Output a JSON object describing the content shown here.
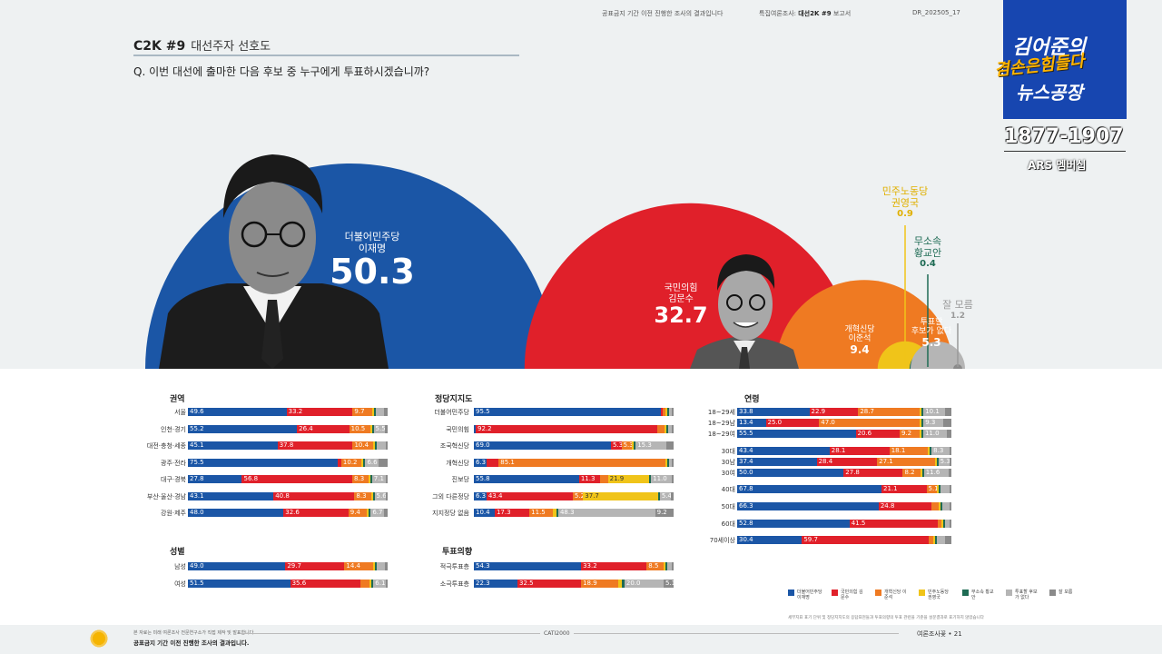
{
  "header": {
    "notice": "공표금지 기간 이전 진행한 조사의 결과입니다",
    "report_prefix": "특집여론조사:",
    "report_name": "대선2K #9",
    "report_suffix": "보고서",
    "doc_code": "DR_202505_17",
    "code": "C2K #9",
    "subtitle": "대선주자 선호도",
    "question_mark": "Q.",
    "question": "이번 대선에 출마한 다음 후보 중 누구에게 투표하시겠습니까?"
  },
  "logo": {
    "line1": "김어준의",
    "line2": "겸손은힘들다",
    "line3": "뉴스공장",
    "phone": "1877-1907",
    "ars": "ARS 멤버십"
  },
  "colors": {
    "dem": "#1b56a6",
    "ppp": "#e0202a",
    "reform": "#ef7a22",
    "labor": "#f0c419",
    "indep": "#1e6b54",
    "none": "#b5b5b5",
    "dk": "#8a8a8a"
  },
  "chart_data": [
    {
      "type": "bubble",
      "candidates": [
        {
          "party": "더불어민주당",
          "name": "이재명",
          "value": 50.3,
          "color": "#1b56a6"
        },
        {
          "party": "국민의힘",
          "name": "김문수",
          "value": 32.7,
          "color": "#e0202a"
        },
        {
          "party": "개혁신당",
          "name": "이준석",
          "value": 9.4,
          "color": "#ef7a22"
        },
        {
          "party": "민주노동당",
          "name": "권영국",
          "value": 0.9,
          "color": "#f0c419"
        },
        {
          "party": "무소속",
          "name": "황교안",
          "value": 0.4,
          "color": "#1e6b54"
        },
        {
          "party": "투표할",
          "name": "후보가 없다",
          "value": 5.3,
          "color": "#b5b5b5"
        },
        {
          "party": "잘 모름",
          "name": "",
          "value": 1.2,
          "color": "#8a8a8a"
        }
      ]
    },
    {
      "type": "bar",
      "title": "권역",
      "rows": [
        {
          "label": "서울",
          "values": [
            49.6,
            33.2,
            9.7,
            0.8,
            0.6,
            4.3,
            1.8
          ]
        },
        {
          "label": "인천·경기",
          "values": [
            55.2,
            26.4,
            10.5,
            0.5,
            0.3,
            5.5,
            1.6
          ]
        },
        {
          "label": "대전·충청·세종",
          "values": [
            45.1,
            37.8,
            10.4,
            1.0,
            0.4,
            4.3,
            1.0
          ]
        },
        {
          "label": "광주·전라",
          "values": [
            75.5,
            1.6,
            10.2,
            1.0,
            0.5,
            6.6,
            4.6
          ]
        },
        {
          "label": "대구·경북",
          "values": [
            27.8,
            56.8,
            8.3,
            0.6,
            0.5,
            7.1,
            0.4
          ]
        },
        {
          "label": "부산·울산·경남",
          "values": [
            43.1,
            40.8,
            8.3,
            0.8,
            0.4,
            5.6,
            1.0
          ]
        },
        {
          "label": "강원·제주",
          "values": [
            48.0,
            32.6,
            9.4,
            0.9,
            0.6,
            6.7,
            1.8
          ]
        }
      ],
      "shown": [
        [
          "49.6",
          "33.2",
          "9.7",
          "",
          "",
          "",
          ""
        ],
        [
          "55.2",
          "26.4",
          "10.5",
          "",
          "",
          "5.5",
          ""
        ],
        [
          "45.1",
          "37.8",
          "10.4",
          "",
          "",
          "",
          ""
        ],
        [
          "75.5",
          "",
          "10.2",
          "",
          "",
          "6.6",
          ""
        ],
        [
          "27.8",
          "56.8",
          "8.3",
          "",
          "",
          "7.1",
          ""
        ],
        [
          "43.1",
          "40.8",
          "8.3",
          "",
          "",
          "5.6",
          ""
        ],
        [
          "48.0",
          "32.6",
          "9.4",
          "",
          "",
          "6.7",
          ""
        ]
      ]
    },
    {
      "type": "bar",
      "title": "성별",
      "rows": [
        {
          "label": "남성",
          "values": [
            49.0,
            29.7,
            14.4,
            0.9,
            0.5,
            4.3,
            1.2
          ]
        },
        {
          "label": "여성",
          "values": [
            51.5,
            35.6,
            4.5,
            0.9,
            0.3,
            6.1,
            1.1
          ]
        }
      ],
      "shown": [
        [
          "49.0",
          "29.7",
          "14.4",
          "",
          "",
          "",
          ""
        ],
        [
          "51.5",
          "35.6",
          "",
          "",
          "",
          "6.1",
          ""
        ]
      ]
    },
    {
      "type": "bar",
      "title": "정당지지도",
      "rows": [
        {
          "label": "더불어민주당",
          "values": [
            95.5,
            0.8,
            1.2,
            0.3,
            0.2,
            1.5,
            0.5
          ]
        },
        {
          "label": "국민의힘",
          "values": [
            0.8,
            92.2,
            3.5,
            0.2,
            0.4,
            2.0,
            0.9
          ]
        },
        {
          "label": "조국혁신당",
          "values": [
            69.0,
            5.3,
            5.3,
            0.8,
            0.5,
            15.3,
            3.8
          ]
        },
        {
          "label": "개혁신당",
          "values": [
            6.3,
            6.3,
            85.1,
            0.3,
            0.2,
            1.3,
            0.5
          ]
        },
        {
          "label": "진보당",
          "values": [
            55.8,
            11.3,
            4.0,
            21.9,
            0.0,
            11.0,
            0.0
          ]
        },
        {
          "label": "그외 다른정당",
          "values": [
            6.3,
            43.4,
            5.2,
            37.7,
            0.5,
            5.4,
            1.5
          ]
        },
        {
          "label": "지지정당 없음",
          "values": [
            10.4,
            17.3,
            11.5,
            1.8,
            1.1,
            48.3,
            9.2
          ]
        }
      ],
      "shown": [
        [
          "95.5",
          "",
          "",
          "",
          "",
          "",
          ""
        ],
        [
          "",
          "92.2",
          "",
          "",
          "",
          "",
          ""
        ],
        [
          "69.0",
          "5.3",
          "5.3",
          "",
          "",
          "15.3",
          ""
        ],
        [
          "6.3",
          "",
          "85.1",
          "",
          "",
          "",
          ""
        ],
        [
          "55.8",
          "11.3",
          "",
          "21.9",
          "",
          "11.0",
          ""
        ],
        [
          "6.3",
          "43.4",
          "5.2",
          "37.7",
          "",
          "5.4",
          ""
        ],
        [
          "10.4",
          "17.3",
          "11.5",
          "",
          "",
          "48.3",
          "9.2"
        ]
      ]
    },
    {
      "type": "bar",
      "title": "투표의향",
      "rows": [
        {
          "label": "적극투표층",
          "values": [
            54.3,
            33.2,
            8.5,
            0.7,
            0.4,
            2.4,
            0.5
          ]
        },
        {
          "label": "소극투표층",
          "values": [
            22.3,
            32.5,
            18.9,
            2.0,
            1.3,
            20.0,
            5.1
          ]
        }
      ],
      "shown": [
        [
          "54.3",
          "33.2",
          "8.5",
          "",
          "",
          "",
          ""
        ],
        [
          "22.3",
          "32.5",
          "18.9",
          "",
          "",
          "20.0",
          "5.1"
        ]
      ]
    },
    {
      "type": "bar",
      "title": "연령",
      "rows": [
        {
          "label": "18~29세",
          "values": [
            33.8,
            22.9,
            28.7,
            1.0,
            0.5,
            10.1,
            3.0
          ]
        },
        {
          "label": "18~29남",
          "values": [
            13.4,
            25.0,
            47.0,
            1.0,
            0.5,
            9.3,
            3.8
          ]
        },
        {
          "label": "18~29여",
          "values": [
            55.5,
            20.6,
            9.2,
            1.0,
            0.5,
            11.0,
            2.2
          ]
        },
        {
          "label": "30대",
          "values": [
            43.4,
            28.1,
            18.1,
            0.8,
            0.3,
            8.3,
            1.0
          ]
        },
        {
          "label": "30남",
          "values": [
            37.4,
            28.4,
            27.1,
            0.8,
            0.3,
            5.3,
            0.7
          ]
        },
        {
          "label": "30여",
          "values": [
            50.0,
            27.8,
            8.2,
            0.8,
            0.3,
            11.6,
            1.3
          ]
        },
        {
          "label": "40대",
          "values": [
            67.8,
            21.1,
            5.1,
            0.8,
            0.3,
            4.0,
            0.9
          ]
        },
        {
          "label": "50대",
          "values": [
            66.3,
            24.8,
            3.3,
            0.9,
            0.5,
            3.4,
            0.8
          ]
        },
        {
          "label": "60대",
          "values": [
            52.8,
            41.5,
            1.8,
            0.6,
            0.5,
            2.0,
            0.8
          ]
        },
        {
          "label": "70세이상",
          "values": [
            30.4,
            59.7,
            1.9,
            0.5,
            0.6,
            3.9,
            3.0
          ]
        }
      ],
      "shown": [
        [
          "33.8",
          "22.9",
          "28.7",
          "",
          "",
          "10.1",
          ""
        ],
        [
          "13.4",
          "25.0",
          "47.0",
          "",
          "",
          "9.3",
          ""
        ],
        [
          "55.5",
          "20.6",
          "9.2",
          "",
          "",
          "11.0",
          ""
        ],
        [
          "43.4",
          "28.1",
          "18.1",
          "",
          "",
          "8.3",
          ""
        ],
        [
          "37.4",
          "28.4",
          "27.1",
          "",
          "",
          "5.3",
          ""
        ],
        [
          "50.0",
          "27.8",
          "8.2",
          "",
          "",
          "11.6",
          ""
        ],
        [
          "67.8",
          "21.1",
          "5.1",
          "",
          "",
          "",
          ""
        ],
        [
          "66.3",
          "24.8",
          "",
          "",
          "",
          "",
          ""
        ],
        [
          "52.8",
          "41.5",
          "",
          "",
          "",
          "",
          ""
        ],
        [
          "30.4",
          "59.7",
          "",
          "",
          "",
          "",
          ""
        ]
      ]
    }
  ],
  "legend": [
    {
      "label": "더불어민주당 이재명",
      "color": "#1b56a6"
    },
    {
      "label": "국민의힘 김문수",
      "color": "#e0202a"
    },
    {
      "label": "개혁신당 이준석",
      "color": "#ef7a22"
    },
    {
      "label": "민주노동당 권영국",
      "color": "#f0c419"
    },
    {
      "label": "무소속 황교안",
      "color": "#1e6b54"
    },
    {
      "label": "투표할 후보가 없다",
      "color": "#b5b5b5"
    },
    {
      "label": "잘 모름",
      "color": "#8a8a8a"
    }
  ],
  "footnote": "세부지표 표기 단위 및 정당지지도의 응답표현들과 투표의향의 투표 관련을 기준을 설문결과로 표기하지 않았습니다",
  "footer": {
    "note": "본 자료는 미래 여론조사 전문연구소가 직접 제작 및 발표합니다",
    "bold": "공표금지 기간 이전 진행한 조사의 결과입니다.",
    "center": "CATI2000",
    "right": "여론조사꽃 • 21"
  }
}
